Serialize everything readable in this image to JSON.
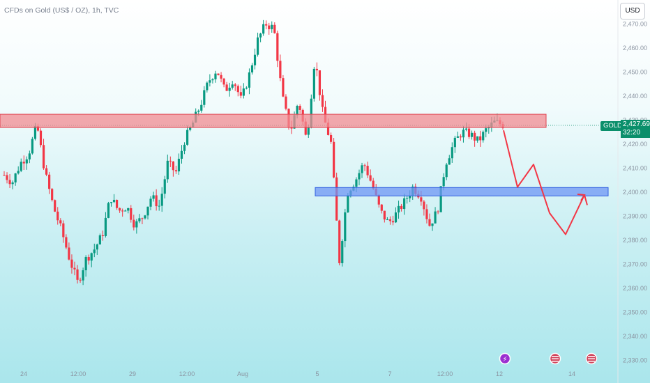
{
  "header": {
    "title": "CFDs on Gold (US$ / OZ), 1h, TVC",
    "currency_button": "USD"
  },
  "last_price": {
    "symbol": "GOLD",
    "value": "2,427.69",
    "countdown": "32:20",
    "color": "#0a8f6b"
  },
  "chart_data": {
    "type": "candlestick",
    "title": "CFDs on Gold (US$ / OZ), 1h, TVC",
    "y_ticks": [
      2470,
      2460,
      2450,
      2440,
      2430,
      2420,
      2410,
      2400,
      2390,
      2380,
      2370,
      2360,
      2350,
      2340,
      2330
    ],
    "y_tick_labels": [
      "2,470.00",
      "2,460.00",
      "2,450.00",
      "2,440.00",
      "2,430.00",
      "2,420.00",
      "2,410.00",
      "2,400.00",
      "2,390.00",
      "2,380.00",
      "2,370.00",
      "2,360.00",
      "2,350.00",
      "2,340.00",
      "2,330.00"
    ],
    "ylim": [
      2327,
      2473
    ],
    "x_tick_labels": [
      "24",
      "12:00",
      "29",
      "12:00",
      "Aug",
      "5",
      "7",
      "12:00",
      "12",
      "14"
    ],
    "colors": {
      "up": "#089981",
      "down": "#f23645",
      "red_zone": "#f28b92",
      "blue_zone": "#6d95f4",
      "path": "#f23645"
    },
    "resistance_zone": {
      "low": 2426.8,
      "high": 2432.3
    },
    "support_zone": {
      "low": 2398.3,
      "high": 2401.8
    },
    "projection_path": [
      2425.6,
      2402.0,
      2411.4,
      2391.2,
      2382.3,
      2398.7,
      2394.5
    ],
    "ohlc_anchors": [
      2407,
      2404,
      2412,
      2416,
      2428,
      2408,
      2394,
      2384,
      2372,
      2362,
      2372,
      2376,
      2382,
      2398,
      2392,
      2394,
      2386,
      2390,
      2398,
      2394,
      2412,
      2408,
      2421,
      2428,
      2436,
      2446,
      2451,
      2442,
      2447,
      2438,
      2449,
      2463,
      2470,
      2468,
      2440,
      2425,
      2438,
      2421,
      2456,
      2432,
      2420,
      2371,
      2400,
      2405,
      2412,
      2403,
      2392,
      2387,
      2391,
      2396,
      2402,
      2398,
      2386,
      2392,
      2412,
      2420,
      2425,
      2424,
      2421,
      2426,
      2429,
      2428
    ]
  }
}
